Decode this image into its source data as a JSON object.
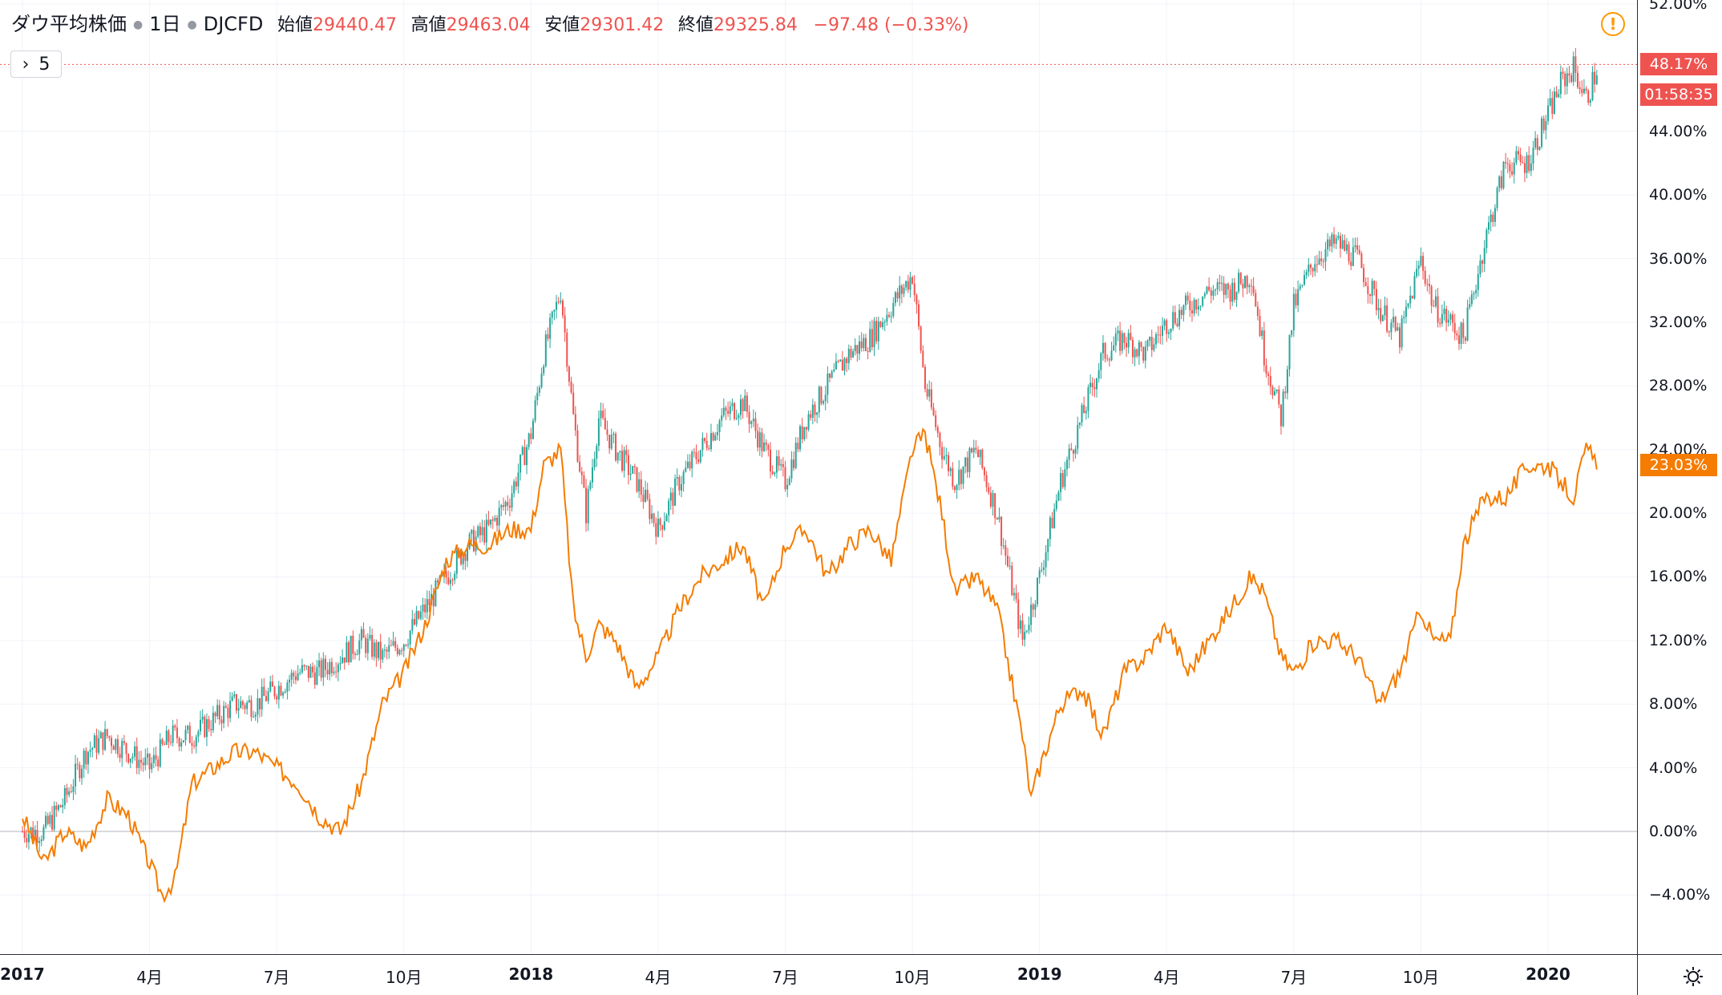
{
  "header": {
    "symbol_name": "ダウ平均株価",
    "interval": "1日",
    "ticker": "DJCFD",
    "open_label": "始値",
    "open_value": "29440.47",
    "high_label": "高値",
    "high_value": "29463.04",
    "low_label": "安値",
    "low_value": "29301.42",
    "close_label": "終値",
    "close_value": "29325.84",
    "change": "−97.48 (−0.33%)",
    "collapse_count": "5"
  },
  "price_labels": {
    "main_pct": "48.17%",
    "countdown": "01:58:35",
    "compare_pct": "23.03%"
  },
  "colors": {
    "up": "#26a69a",
    "down": "#ef5350",
    "compare": "#f57c00",
    "grid": "#f0f3fa",
    "zero_line": "#b2b5be",
    "warning": "#ff9800"
  },
  "icons": {
    "warning": "warning-icon",
    "settings": "gear-icon",
    "expand": "chevron-right-icon"
  },
  "chart_data": {
    "type": "line",
    "title": "",
    "xlabel": "",
    "ylabel": "",
    "ylim": [
      -8,
      52
    ],
    "y_unit": "%",
    "y_ticks": [
      "52.00%",
      "48.00%",
      "44.00%",
      "40.00%",
      "36.00%",
      "32.00%",
      "28.00%",
      "24.00%",
      "20.00%",
      "16.00%",
      "12.00%",
      "8.00%",
      "4.00%",
      "0.00%",
      "−4.00%"
    ],
    "y_tick_values": [
      52,
      48,
      44,
      40,
      36,
      32,
      28,
      24,
      20,
      16,
      12,
      8,
      4,
      0,
      -4
    ],
    "x_ticks": [
      {
        "label": "2017",
        "t": 0.0,
        "year": true
      },
      {
        "label": "4月",
        "t": 3.0
      },
      {
        "label": "7月",
        "t": 6.0
      },
      {
        "label": "10月",
        "t": 9.0
      },
      {
        "label": "2018",
        "t": 12.0,
        "year": true
      },
      {
        "label": "4月",
        "t": 15.0
      },
      {
        "label": "7月",
        "t": 18.0
      },
      {
        "label": "10月",
        "t": 21.0
      },
      {
        "label": "2019",
        "t": 24.0,
        "year": true
      },
      {
        "label": "4月",
        "t": 27.0
      },
      {
        "label": "7月",
        "t": 30.0
      },
      {
        "label": "10月",
        "t": 33.0
      },
      {
        "label": "2020",
        "t": 36.0,
        "year": true
      }
    ],
    "x_unit": "months since Jan 2017",
    "series": [
      {
        "kind": "candlestick-percent",
        "color_up": "#26a69a",
        "color_down": "#ef5350",
        "x": [
          0,
          0.5,
          1,
          1.5,
          2,
          2.5,
          3,
          3.5,
          4,
          4.5,
          5,
          5.5,
          6,
          6.5,
          7,
          7.5,
          8,
          8.5,
          9,
          9.5,
          10,
          10.5,
          11,
          11.5,
          12,
          12.3,
          12.7,
          13,
          13.3,
          13.6,
          14,
          14.5,
          15,
          15.5,
          16,
          16.5,
          17,
          17.5,
          18,
          18.5,
          19,
          19.5,
          20,
          20.5,
          21,
          21.3,
          21.7,
          22,
          22.5,
          23,
          23.3,
          23.6,
          23.8,
          24,
          24.5,
          25,
          25.5,
          26,
          26.5,
          27,
          27.5,
          28,
          28.5,
          29,
          29.3,
          29.7,
          30,
          30.5,
          31,
          31.5,
          32,
          32.5,
          33,
          33.3,
          33.7,
          34,
          34.5,
          35,
          35.5,
          36,
          36.3,
          36.6,
          36.9,
          37.2
        ],
        "values": [
          0,
          0,
          2,
          5,
          6,
          5,
          4,
          6,
          6,
          7,
          8,
          8,
          9,
          10,
          10,
          11,
          12,
          11,
          12,
          14,
          16,
          18,
          19,
          21,
          25,
          30,
          34,
          26,
          20,
          26,
          24,
          22,
          19,
          22,
          24,
          26,
          27,
          24,
          22,
          26,
          28,
          30,
          31,
          33,
          35,
          28,
          24,
          22,
          24,
          20,
          16,
          12,
          14,
          16,
          22,
          26,
          30,
          31,
          30,
          32,
          33,
          34,
          34,
          35,
          30,
          26,
          33,
          36,
          37,
          36,
          33,
          31,
          36,
          33,
          32,
          31,
          37,
          42,
          42,
          45,
          47,
          48,
          46,
          48.2
        ]
      },
      {
        "kind": "line",
        "color": "#f57c00",
        "x": [
          0,
          0.5,
          1,
          1.5,
          2,
          2.5,
          3,
          3.3,
          3.6,
          4,
          4.5,
          5,
          5.5,
          6,
          6.5,
          7,
          7.5,
          8,
          8.5,
          9,
          9.5,
          10,
          10.5,
          11,
          11.5,
          12,
          12.3,
          12.7,
          13,
          13.3,
          13.6,
          14,
          14.5,
          15,
          15.5,
          16,
          16.5,
          17,
          17.5,
          18,
          18.5,
          19,
          19.5,
          20,
          20.5,
          21,
          21.3,
          21.7,
          22,
          22.5,
          23,
          23.3,
          23.6,
          23.8,
          24,
          24.5,
          25,
          25.5,
          26,
          26.5,
          27,
          27.5,
          28,
          28.5,
          29,
          29.3,
          29.7,
          30,
          30.5,
          31,
          31.5,
          32,
          32.5,
          33,
          33.3,
          33.7,
          34,
          34.5,
          35,
          35.5,
          36,
          36.3,
          36.6,
          36.9,
          37.2
        ],
        "values": [
          1,
          -2,
          0,
          -1,
          2,
          1,
          -2,
          -4,
          -3,
          3,
          4,
          5,
          5,
          4,
          3,
          1,
          0,
          3,
          8,
          10,
          13,
          17,
          18,
          18,
          19,
          19,
          23,
          24,
          14,
          11,
          13,
          12,
          9,
          11,
          14,
          16,
          17,
          18,
          14,
          18,
          19,
          16,
          18,
          19,
          17,
          24,
          25,
          20,
          15,
          16,
          14,
          10,
          6,
          2,
          4,
          8,
          9,
          6,
          10,
          11,
          13,
          10,
          12,
          14,
          16,
          15,
          11,
          10,
          12,
          12,
          11,
          8,
          10,
          14,
          12,
          12,
          18,
          21,
          21,
          23,
          23,
          22,
          21,
          24,
          23.03
        ]
      }
    ]
  }
}
